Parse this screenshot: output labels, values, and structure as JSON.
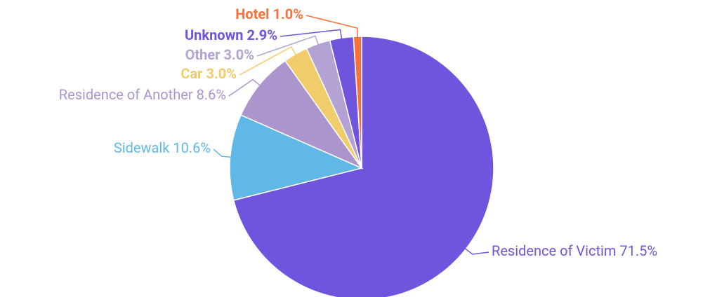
{
  "chart_data": {
    "type": "pie",
    "categories": [
      "Residence of Victim",
      "Sidewalk",
      "Residence of Another",
      "Car",
      "Other",
      "Unknown",
      "Hotel"
    ],
    "values": [
      71.5,
      10.6,
      8.6,
      3.0,
      3.0,
      2.9,
      1.0
    ],
    "value_labels": [
      "71.5%",
      "10.6%",
      "8.6%",
      "3.0%",
      "3.0%",
      "2.9%",
      "1.0%"
    ],
    "colors": [
      "#6f55dd",
      "#5fb8e6",
      "#ab95cc",
      "#f0cc6b",
      "#b3a2d3",
      "#6f55dd",
      "#fb6f3b"
    ]
  }
}
